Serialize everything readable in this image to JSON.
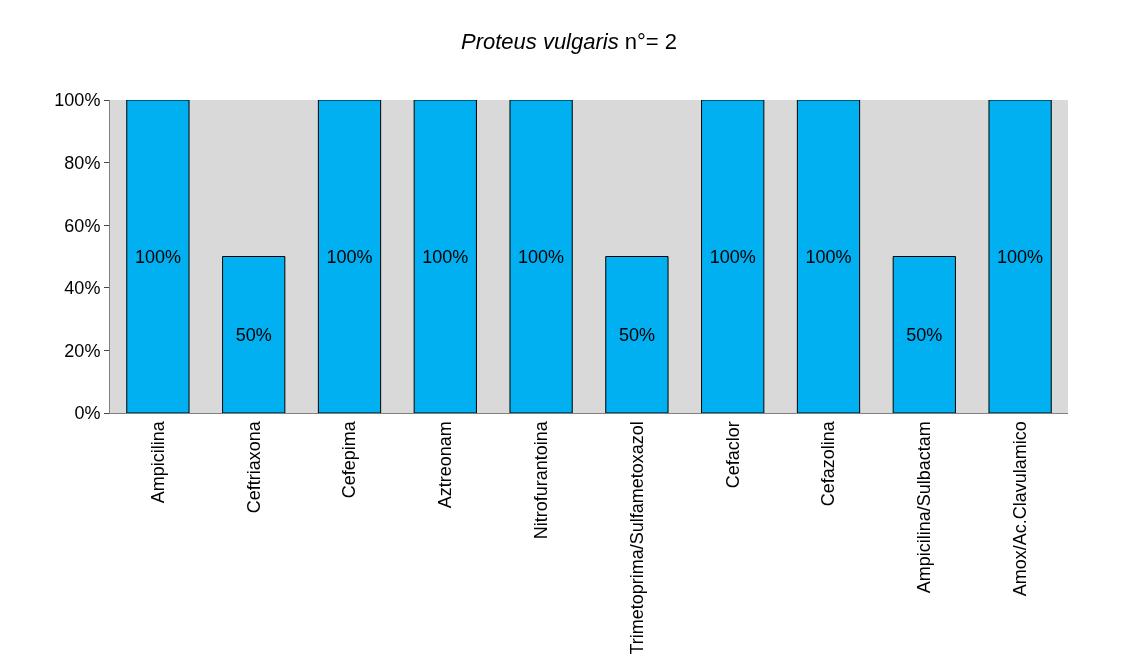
{
  "chart_data": {
    "type": "bar",
    "title": "Proteus vulgaris n°= 2",
    "categories": [
      "Ampicilina",
      "Ceftriaxona",
      "Cefepima",
      "Aztreonam",
      "Nitrofurantoina",
      "Trimetoprima/Sulfametoxazol",
      "Cefaclor",
      "Cefazolina",
      "Ampicilina/Sulbactam",
      "Amox/Ac.Clavulamico"
    ],
    "values": [
      100,
      50,
      100,
      100,
      100,
      50,
      100,
      100,
      50,
      100
    ],
    "value_labels": [
      "100%",
      "50%",
      "100%",
      "100%",
      "100%",
      "50%",
      "100%",
      "100%",
      "50%",
      "100%"
    ],
    "color": "#00b0f0",
    "ylim": [
      0,
      100
    ],
    "yticks": [
      {
        "value": 0,
        "label": "0%"
      },
      {
        "value": 20,
        "label": "20%"
      },
      {
        "value": 40,
        "label": "40%"
      },
      {
        "value": 60,
        "label": "60%"
      },
      {
        "value": 80,
        "label": "80%"
      },
      {
        "value": 100,
        "label": "100%"
      }
    ],
    "grid": false,
    "legend": false
  }
}
